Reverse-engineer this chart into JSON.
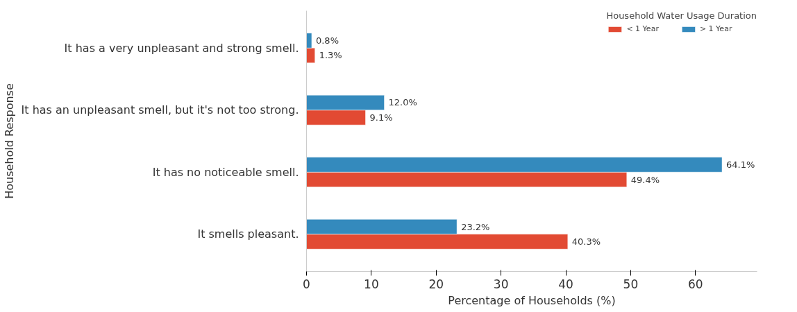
{
  "chart_data": {
    "type": "bar",
    "orientation": "horizontal",
    "xlabel": "Percentage of Households (%)",
    "ylabel": "Household Response",
    "legend_title": "Household Water Usage Duration",
    "categories": [
      "It has a very unpleasant and strong smell.",
      "It has an unpleasant smell, but it's not too strong.",
      "It has no noticeable smell.",
      "It smells pleasant."
    ],
    "series": [
      {
        "name": "< 1 Year",
        "color": "#e24a33",
        "values": [
          1.3,
          9.1,
          49.4,
          40.3
        ],
        "value_labels": [
          "1.3%",
          "9.1%",
          "49.4%",
          "40.3%"
        ]
      },
      {
        "name": "> 1 Year",
        "color": "#348abd",
        "values": [
          0.8,
          12.0,
          64.1,
          23.2
        ],
        "value_labels": [
          "0.8%",
          "12.0%",
          "64.1%",
          "23.2%"
        ]
      }
    ],
    "xlim": [
      0,
      69.5
    ],
    "xticks": [
      0,
      10,
      20,
      30,
      40,
      50,
      60
    ],
    "grid": false,
    "legend": "top right"
  }
}
